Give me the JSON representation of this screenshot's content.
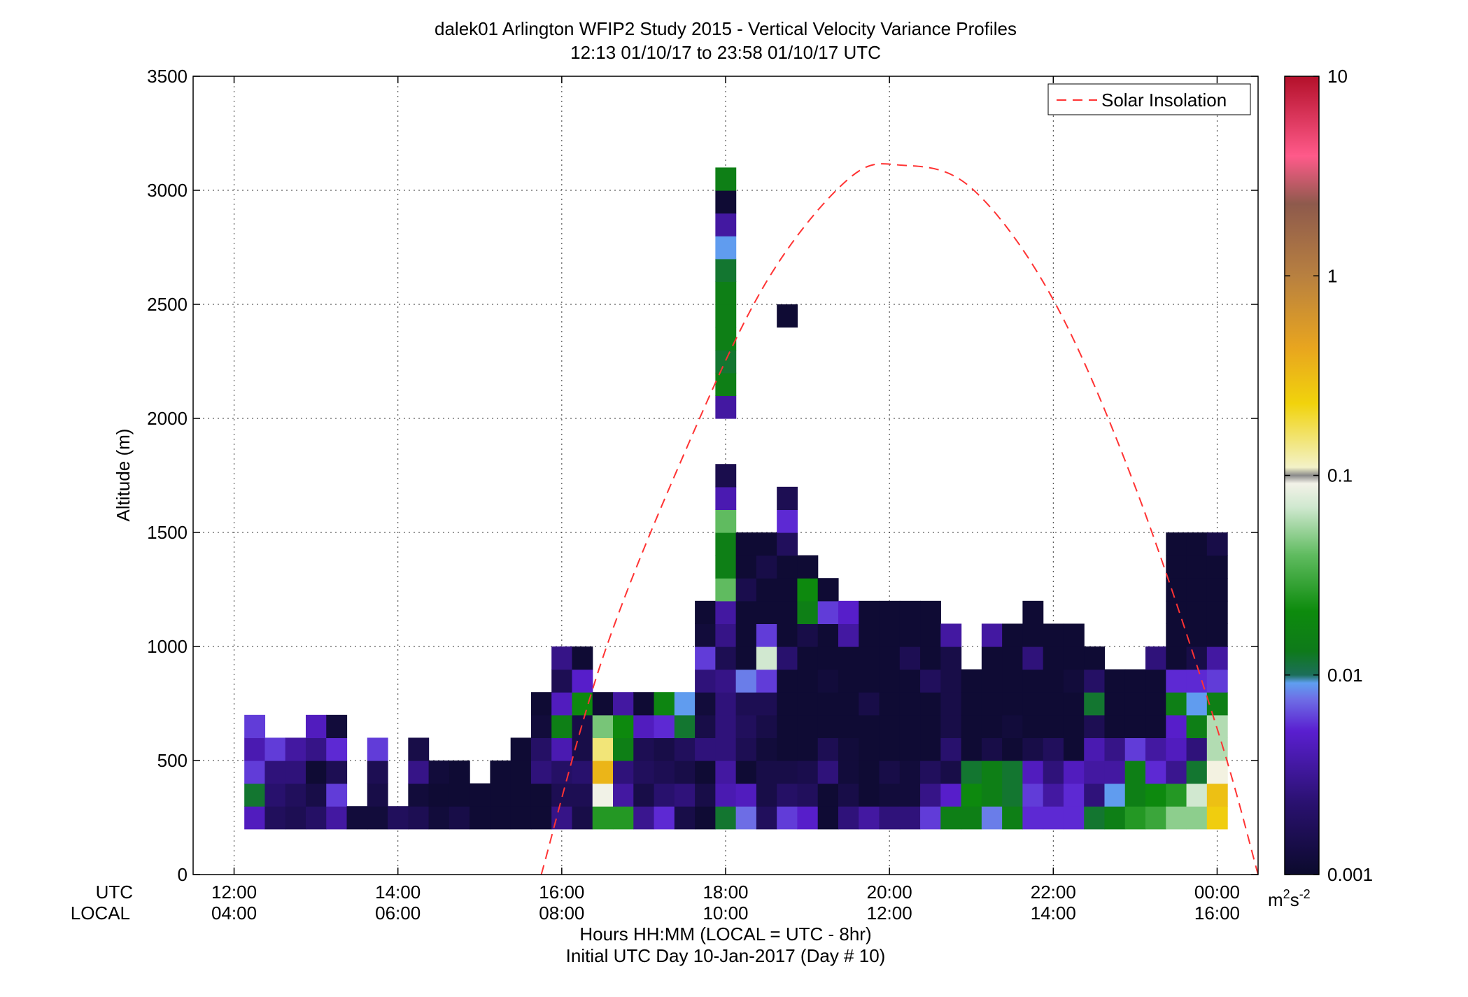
{
  "chart_data": {
    "type": "heatmap",
    "title": "dalek01 Arlington WFIP2 Study 2015 - Vertical Velocity Variance Profiles",
    "subtitle": "12:13 01/10/17 to 23:58 01/10/17  UTC",
    "ylabel": "Altitude (m)",
    "xlabel": "Hours HH:MM  (LOCAL = UTC - 8hr)",
    "xlabel2": "Initial UTC Day 10-Jan-2017 (Day # 10)",
    "x_row_label_utc": "UTC",
    "x_row_label_local": "LOCAL",
    "xlim_hours_utc": [
      11.5,
      24.5
    ],
    "ylim": [
      0,
      3500
    ],
    "yticks": [
      "0",
      "500",
      "1000",
      "1500",
      "2000",
      "2500",
      "3000",
      "3500"
    ],
    "xticks": [
      {
        "utc": "12:00",
        "local": "04:00",
        "hour": 12
      },
      {
        "utc": "14:00",
        "local": "06:00",
        "hour": 14
      },
      {
        "utc": "16:00",
        "local": "08:00",
        "hour": 16
      },
      {
        "utc": "18:00",
        "local": "10:00",
        "hour": 18
      },
      {
        "utc": "20:00",
        "local": "12:00",
        "hour": 20
      },
      {
        "utc": "22:00",
        "local": "14:00",
        "hour": 22
      },
      {
        "utc": "00:00",
        "local": "16:00",
        "hour": 24
      }
    ],
    "grid": true,
    "legend": {
      "position": "top-right",
      "entries": [
        "Solar Insolation"
      ],
      "line_color": "#ff3333",
      "line_style": "dashed"
    },
    "colorbar": {
      "scale": "log",
      "range": [
        0.001,
        10
      ],
      "tick_labels": [
        "0.001",
        "0.01",
        "0.1",
        "1",
        "10"
      ],
      "unit_base": "m",
      "unit_exp1": "2",
      "unit_mid": "s",
      "unit_exp2": "-2"
    },
    "cell_time_step_hours": 0.25,
    "cell_altitude_step_m": 100,
    "columns_start_hour_utc": 12.25,
    "altitudes_m": [
      250,
      350,
      450,
      550,
      650,
      750,
      850,
      950,
      1050,
      1150,
      1250,
      1350,
      1450,
      1550,
      1650,
      1750,
      1850,
      1950,
      2050,
      2150,
      2250,
      2350,
      2450,
      2550,
      2650,
      2750,
      2850,
      2950,
      3050
    ],
    "solar_insolation_curve": [
      {
        "hour": 15.75,
        "altitude": 0
      },
      {
        "hour": 16.5,
        "altitude": 950
      },
      {
        "hour": 17.5,
        "altitude": 1850
      },
      {
        "hour": 18.5,
        "altitude": 2600
      },
      {
        "hour": 19.5,
        "altitude": 3050
      },
      {
        "hour": 20.15,
        "altitude": 3110
      },
      {
        "hour": 21.0,
        "altitude": 3010
      },
      {
        "hour": 22.0,
        "altitude": 2520
      },
      {
        "hour": 23.0,
        "altitude": 1700
      },
      {
        "hour": 24.0,
        "altitude": 640
      },
      {
        "hour": 24.5,
        "altitude": 0
      }
    ],
    "series": [
      {
        "hour": 12.25,
        "values": [
          0.0045,
          0.012,
          0.006,
          0.004,
          0.006
        ]
      },
      {
        "hour": 12.5,
        "values": [
          0.0018,
          0.0022,
          0.0025,
          0.006
        ]
      },
      {
        "hour": 12.75,
        "values": [
          0.0016,
          0.0018,
          0.0025,
          0.0035
        ]
      },
      {
        "hour": 13.0,
        "values": [
          0.002,
          0.0014,
          0.0011,
          0.0028,
          0.0045
        ]
      },
      {
        "hour": 13.25,
        "values": [
          0.0035,
          0.006,
          0.0016,
          0.0055,
          0.0012
        ]
      },
      {
        "hour": 13.5,
        "values": [
          0.0012
        ]
      },
      {
        "hour": 13.75,
        "values": [
          0.0012,
          0.0014,
          0.0016,
          0.006
        ]
      },
      {
        "hour": 14.0,
        "values": [
          0.0018
        ]
      },
      {
        "hour": 14.25,
        "values": [
          0.0016,
          0.0012,
          0.0028,
          0.0014
        ]
      },
      {
        "hour": 14.5,
        "values": [
          0.0012,
          0.0011,
          0.0012
        ]
      },
      {
        "hour": 14.75,
        "values": [
          0.0014,
          0.0011,
          0.0011
        ]
      },
      {
        "hour": 15.0,
        "values": [
          0.0011,
          0.0011
        ]
      },
      {
        "hour": 15.25,
        "values": [
          0.0011,
          0.0011,
          0.0011
        ]
      },
      {
        "hour": 15.5,
        "values": [
          0.0011,
          0.0011,
          0.0011,
          0.0011
        ]
      },
      {
        "hour": 15.75,
        "values": [
          0.0011,
          0.0011,
          0.0025,
          0.002,
          0.0012,
          0.0011
        ]
      },
      {
        "hour": 16.0,
        "values": [
          0.0028,
          0.0016,
          0.002,
          0.004,
          0.015,
          0.0045,
          0.0016,
          0.0028
        ]
      },
      {
        "hour": 16.25,
        "values": [
          0.0014,
          0.0016,
          0.0022,
          0.0014,
          0.0014,
          0.02,
          0.005,
          0.0011
        ]
      },
      {
        "hour": 16.5,
        "values": [
          0.025,
          0.09,
          0.35,
          0.15,
          0.045,
          0.0011
        ]
      },
      {
        "hour": 16.75,
        "values": [
          0.025,
          0.0035,
          0.0025,
          0.015,
          0.02,
          0.0035
        ]
      },
      {
        "hour": 17.0,
        "values": [
          0.003,
          0.0014,
          0.0018,
          0.0016,
          0.0045,
          0.0011
        ]
      },
      {
        "hour": 17.25,
        "values": [
          0.0055,
          0.0022,
          0.0016,
          0.0014,
          0.0055,
          0.018
        ]
      },
      {
        "hour": 17.5,
        "values": [
          0.0014,
          0.0025,
          0.0014,
          0.0018,
          0.012,
          0.009
        ]
      },
      {
        "hour": 17.75,
        "values": [
          0.0011,
          0.0014,
          0.0011,
          0.0025,
          0.0014,
          0.0012,
          0.0025,
          0.006,
          0.0012,
          0.0011
        ]
      },
      {
        "hour": 18.0,
        "values": [
          0.012,
          0.004,
          0.0035,
          0.0025,
          0.0025,
          0.0025,
          0.0028,
          0.0016,
          0.0028,
          0.0035,
          0.04,
          0.015,
          0.015,
          0.04,
          0.004,
          0.0015,
          0.0,
          0.0,
          0.0035,
          0.015,
          0.012,
          0.015,
          0.015,
          0.015,
          0.012,
          0.009,
          0.0035,
          0.0011,
          0.015
        ]
      },
      {
        "hour": 18.25,
        "values": [
          0.0075,
          0.0045,
          0.0011,
          0.0016,
          0.0018,
          0.0016,
          0.008,
          0.0011,
          0.0011,
          0.0011,
          0.0015,
          0.0011,
          0.0011
        ]
      },
      {
        "hour": 18.5,
        "values": [
          0.0018,
          0.0014,
          0.0014,
          0.0012,
          0.0014,
          0.0016,
          0.006,
          0.07,
          0.006,
          0.0011,
          0.0011,
          0.0014,
          0.0011
        ]
      },
      {
        "hour": 18.75,
        "values": [
          0.006,
          0.002,
          0.0014,
          0.0011,
          0.0011,
          0.0011,
          0.0011,
          0.0022,
          0.0011,
          0.0011,
          0.0011,
          0.0011,
          0.0018,
          0.0055,
          0.0016,
          0.0,
          0.0,
          0.0,
          0.0,
          0.0,
          0.0,
          0.0,
          0.0011
        ]
      },
      {
        "hour": 19.0,
        "values": [
          0.005,
          0.0018,
          0.0015,
          0.0011,
          0.0011,
          0.0011,
          0.0011,
          0.0011,
          0.0014,
          0.015,
          0.02,
          0.0011
        ]
      },
      {
        "hour": 19.25,
        "values": [
          0.0011,
          0.0011,
          0.0025,
          0.0016,
          0.0011,
          0.0011,
          0.0012,
          0.0011,
          0.0011,
          0.006,
          0.0011
        ]
      },
      {
        "hour": 19.5,
        "values": [
          0.0025,
          0.0014,
          0.0012,
          0.0012,
          0.0011,
          0.0011,
          0.0011,
          0.0011,
          0.0035,
          0.005
        ]
      },
      {
        "hour": 19.75,
        "values": [
          0.0035,
          0.0011,
          0.0011,
          0.0011,
          0.0011,
          0.0014,
          0.0011,
          0.0011,
          0.0011,
          0.0011
        ]
      },
      {
        "hour": 20.0,
        "values": [
          0.0025,
          0.0012,
          0.0014,
          0.0011,
          0.0011,
          0.0011,
          0.0011,
          0.0011,
          0.0011,
          0.0011
        ]
      },
      {
        "hour": 20.25,
        "values": [
          0.0025,
          0.0012,
          0.0012,
          0.0011,
          0.0011,
          0.0011,
          0.0011,
          0.0016,
          0.0011,
          0.0011
        ]
      },
      {
        "hour": 20.5,
        "values": [
          0.006,
          0.0028,
          0.0018,
          0.0011,
          0.0011,
          0.0011,
          0.0018,
          0.0011,
          0.0011,
          0.0011
        ]
      },
      {
        "hour": 20.75,
        "values": [
          0.015,
          0.005,
          0.0014,
          0.0022,
          0.0014,
          0.0014,
          0.0014,
          0.0014,
          0.0035
        ]
      },
      {
        "hour": 21.0,
        "values": [
          0.015,
          0.02,
          0.012,
          0.0011,
          0.0011,
          0.0011,
          0.0011
        ]
      },
      {
        "hour": 21.25,
        "values": [
          0.008,
          0.015,
          0.015,
          0.0014,
          0.0011,
          0.0011,
          0.0011,
          0.0011,
          0.0035
        ]
      },
      {
        "hour": 21.5,
        "values": [
          0.015,
          0.012,
          0.012,
          0.0011,
          0.0012,
          0.0011,
          0.0011,
          0.0011,
          0.0011
        ]
      },
      {
        "hour": 21.75,
        "values": [
          0.0055,
          0.006,
          0.0045,
          0.0014,
          0.0011,
          0.0011,
          0.0011,
          0.0025,
          0.0011,
          0.0011
        ]
      },
      {
        "hour": 22.0,
        "values": [
          0.0055,
          0.0035,
          0.0025,
          0.0018,
          0.0011,
          0.0011,
          0.0011,
          0.0011,
          0.0011
        ]
      },
      {
        "hour": 22.25,
        "values": [
          0.0055,
          0.0055,
          0.0045,
          0.0011,
          0.0011,
          0.0011,
          0.0012,
          0.0011,
          0.0011
        ]
      },
      {
        "hour": 22.5,
        "values": [
          0.012,
          0.0025,
          0.0035,
          0.004,
          0.0016,
          0.012,
          0.002,
          0.0011
        ]
      },
      {
        "hour": 22.75,
        "values": [
          0.015,
          0.009,
          0.0035,
          0.0028,
          0.0011,
          0.0011,
          0.0011
        ]
      },
      {
        "hour": 23.0,
        "values": [
          0.025,
          0.015,
          0.015,
          0.006,
          0.0011,
          0.0011,
          0.0011
        ]
      },
      {
        "hour": 23.25,
        "values": [
          0.03,
          0.02,
          0.0055,
          0.0035,
          0.0011,
          0.0011,
          0.0011,
          0.0025
        ]
      },
      {
        "hour": 23.5,
        "values": [
          0.05,
          0.025,
          0.003,
          0.0045,
          0.005,
          0.015,
          0.0055,
          0.0011,
          0.0011,
          0.0011,
          0.0011,
          0.0011,
          0.0011
        ]
      },
      {
        "hour": 23.75,
        "values": [
          0.05,
          0.07,
          0.012,
          0.0025,
          0.015,
          0.009,
          0.0055,
          0.0014,
          0.0011,
          0.0011,
          0.0011,
          0.0011,
          0.0011
        ]
      },
      {
        "hour": 24.0,
        "values": [
          0.25,
          0.3,
          0.095,
          0.06,
          0.06,
          0.015,
          0.006,
          0.0035,
          0.0011,
          0.0011,
          0.0011,
          0.0011,
          0.0014
        ]
      }
    ]
  }
}
